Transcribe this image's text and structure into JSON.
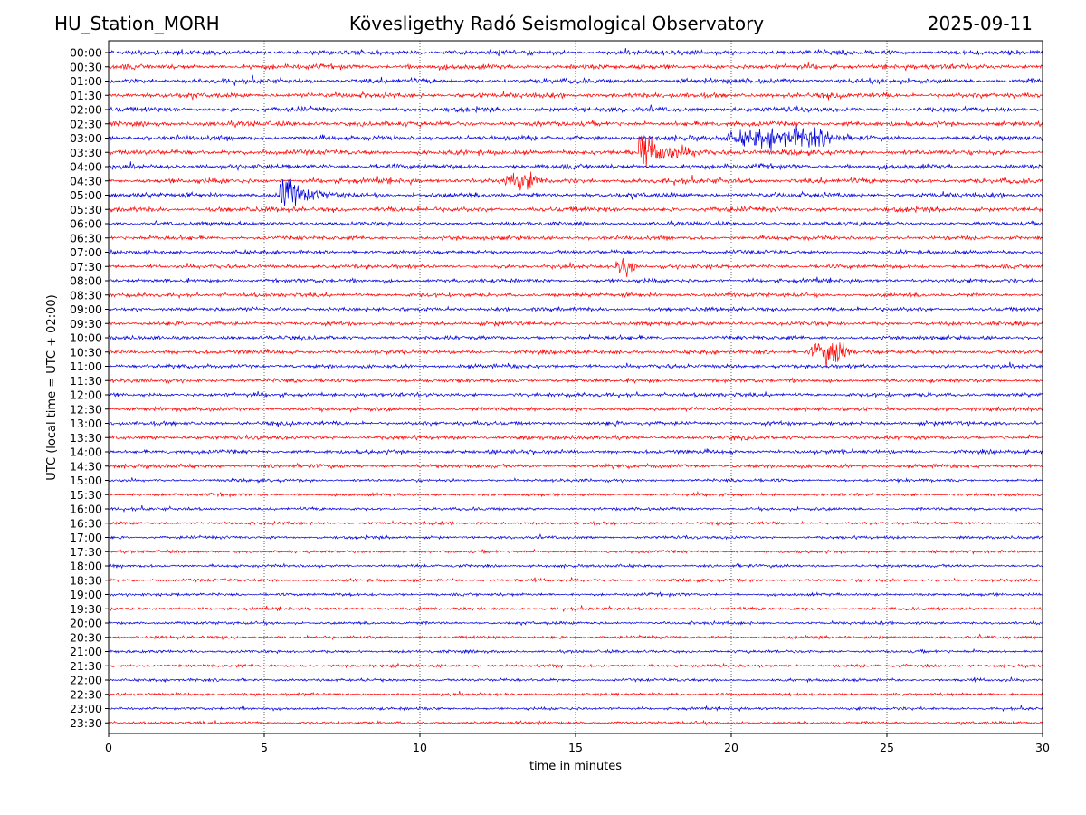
{
  "header": {
    "station": "HU_Station_MORH",
    "observatory": "Kövesligethy Radó Seismological Observatory",
    "date": "2025-09-11"
  },
  "chart_data": {
    "type": "line",
    "title": "Kövesligethy Radó Seismological Observatory",
    "xlabel": "time in minutes",
    "ylabel": "UTC (local time = UTC + 02:00)",
    "xlim": [
      0,
      30
    ],
    "x_ticks": [
      0,
      5,
      10,
      15,
      20,
      25,
      30
    ],
    "grid": "vertical dotted lines at each x tick",
    "colors": [
      "#0000dd",
      "#ff0000"
    ],
    "rows": [
      "00:00",
      "00:30",
      "01:00",
      "01:30",
      "02:00",
      "02:30",
      "03:00",
      "03:30",
      "04:00",
      "04:30",
      "05:00",
      "05:30",
      "06:00",
      "06:30",
      "07:00",
      "07:30",
      "08:00",
      "08:30",
      "09:00",
      "09:30",
      "10:00",
      "10:30",
      "11:00",
      "11:30",
      "12:00",
      "12:30",
      "13:00",
      "13:30",
      "14:00",
      "14:30",
      "15:00",
      "15:30",
      "16:00",
      "16:30",
      "17:00",
      "17:30",
      "18:00",
      "18:30",
      "19:00",
      "19:30",
      "20:00",
      "20:30",
      "21:00",
      "21:30",
      "22:00",
      "22:30",
      "23:00",
      "23:30"
    ],
    "events": [
      {
        "row": "03:00",
        "start_min": 19.6,
        "end_min": 23.8,
        "peak": 0.5,
        "sharp": false
      },
      {
        "row": "03:30",
        "start_min": 17.0,
        "end_min": 20.8,
        "peak": 1.0,
        "sharp": true
      },
      {
        "row": "04:30",
        "start_min": 12.5,
        "end_min": 14.0,
        "peak": 0.35,
        "sharp": false
      },
      {
        "row": "05:00",
        "start_min": 5.5,
        "end_min": 8.0,
        "peak": 1.1,
        "sharp": true
      },
      {
        "row": "07:30",
        "start_min": 16.2,
        "end_min": 17.0,
        "peak": 0.45,
        "sharp": false
      },
      {
        "row": "10:30",
        "start_min": 22.4,
        "end_min": 24.0,
        "peak": 0.6,
        "sharp": false
      }
    ]
  }
}
